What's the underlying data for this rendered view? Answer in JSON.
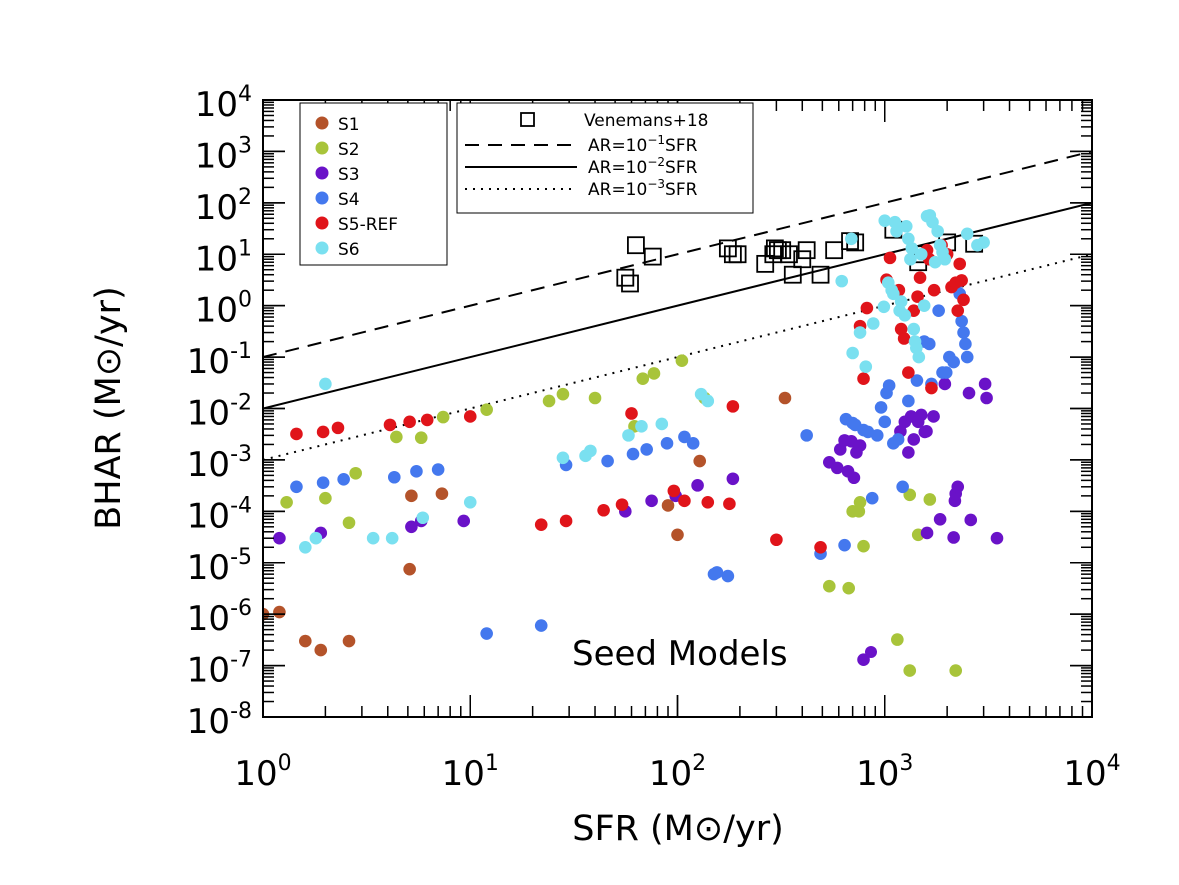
{
  "chart_data": {
    "type": "scatter",
    "title": "",
    "xlabel": "SFR (M⊙/yr)",
    "ylabel": "BHAR (M⊙/yr)",
    "xscale": "log",
    "yscale": "log",
    "xlim": [
      1,
      10000
    ],
    "ylim": [
      1e-08,
      10000
    ],
    "x_tick_labels": [
      {
        "base": "10",
        "exp": "0"
      },
      {
        "base": "10",
        "exp": "1"
      },
      {
        "base": "10",
        "exp": "2"
      },
      {
        "base": "10",
        "exp": "3"
      },
      {
        "base": "10",
        "exp": "4"
      }
    ],
    "y_tick_labels": [
      {
        "base": "10",
        "exp": "-8"
      },
      {
        "base": "10",
        "exp": "-7"
      },
      {
        "base": "10",
        "exp": "-6"
      },
      {
        "base": "10",
        "exp": "-5"
      },
      {
        "base": "10",
        "exp": "-4"
      },
      {
        "base": "10",
        "exp": "-3"
      },
      {
        "base": "10",
        "exp": "-2"
      },
      {
        "base": "10",
        "exp": "-1"
      },
      {
        "base": "10",
        "exp": "0"
      },
      {
        "base": "10",
        "exp": "1"
      },
      {
        "base": "10",
        "exp": "2"
      },
      {
        "base": "10",
        "exp": "3"
      },
      {
        "base": "10",
        "exp": "4"
      }
    ],
    "annotation": "Seed Models",
    "legend_series_position": "top-left",
    "legend_lines_position": "top-center",
    "lines": [
      {
        "name": "AR=10^-1 SFR",
        "label_pre": "AR=10",
        "label_exp": "−1",
        "label_post": "SFR",
        "style": "dashed",
        "ratio": 0.1
      },
      {
        "name": "AR=10^-2 SFR",
        "label_pre": "AR=10",
        "label_exp": "−2",
        "label_post": "SFR",
        "style": "solid",
        "ratio": 0.01
      },
      {
        "name": "AR=10^-3 SFR",
        "label_pre": "AR=10",
        "label_exp": "−3",
        "label_post": "SFR",
        "style": "dotted",
        "ratio": 0.001
      }
    ],
    "observations": {
      "name": "Venemans+18",
      "marker": "open-square",
      "color": "#000000",
      "points": [
        [
          56,
          3.5
        ],
        [
          59,
          2.7
        ],
        [
          63,
          15
        ],
        [
          76,
          9
        ],
        [
          175,
          13
        ],
        [
          185,
          10
        ],
        [
          195,
          10
        ],
        [
          265,
          6.5
        ],
        [
          290,
          10
        ],
        [
          295,
          13
        ],
        [
          305,
          12
        ],
        [
          320,
          12
        ],
        [
          345,
          10
        ],
        [
          360,
          4
        ],
        [
          400,
          8
        ],
        [
          420,
          12
        ],
        [
          490,
          4
        ],
        [
          570,
          12
        ],
        [
          680,
          18
        ],
        [
          720,
          17
        ],
        [
          1100,
          30
        ],
        [
          1450,
          7
        ],
        [
          1500,
          10
        ],
        [
          2000,
          17
        ],
        [
          2700,
          16
        ]
      ]
    },
    "series": [
      {
        "name": "S1",
        "color": "#b4532a",
        "points": [
          [
            1,
            1e-06
          ],
          [
            1.2,
            1.1e-06
          ],
          [
            1.6,
            3e-07
          ],
          [
            1.9,
            2e-07
          ],
          [
            2.6,
            3e-07
          ],
          [
            5.1,
            7.5e-06
          ],
          [
            5.2,
            0.0002
          ],
          [
            7.3,
            0.00022
          ],
          [
            90,
            0.00013
          ],
          [
            100,
            3.5e-05
          ],
          [
            128,
            0.00095
          ],
          [
            330,
            0.016
          ]
        ]
      },
      {
        "name": "S2",
        "color": "#a8c43a",
        "points": [
          [
            1.3,
            0.00015
          ],
          [
            2,
            0.00018
          ],
          [
            2.6,
            6e-05
          ],
          [
            2.8,
            0.00055
          ],
          [
            4.4,
            0.0028
          ],
          [
            5.8,
            0.0027
          ],
          [
            7.4,
            0.0068
          ],
          [
            12,
            0.0095
          ],
          [
            24,
            0.014
          ],
          [
            28,
            0.019
          ],
          [
            40,
            0.016
          ],
          [
            62,
            0.0045
          ],
          [
            68,
            0.038
          ],
          [
            77,
            0.048
          ],
          [
            105,
            0.085
          ],
          [
            135,
            0.016
          ],
          [
            540,
            3.5e-06
          ],
          [
            670,
            3.2e-06
          ],
          [
            700,
            0.0001
          ],
          [
            750,
            0.0001
          ],
          [
            760,
            0.00015
          ],
          [
            790,
            2.1e-05
          ],
          [
            1150,
            3.2e-07
          ],
          [
            1320,
            8e-08
          ],
          [
            1320,
            0.00021
          ],
          [
            1450,
            3.5e-05
          ],
          [
            1650,
            0.00017
          ],
          [
            2200,
            8e-08
          ]
        ]
      },
      {
        "name": "S3",
        "color": "#6a12c8",
        "points": [
          [
            1.2,
            3e-05
          ],
          [
            1.9,
            3.8e-05
          ],
          [
            5.2,
            5e-05
          ],
          [
            5.8,
            6.5e-05
          ],
          [
            9.3,
            6.5e-05
          ],
          [
            56,
            0.0001
          ],
          [
            75,
            0.00016
          ],
          [
            98,
            0.0002
          ],
          [
            125,
            0.00032
          ],
          [
            185,
            0.00043
          ],
          [
            540,
            0.0009
          ],
          [
            590,
            0.0007
          ],
          [
            610,
            0.0016
          ],
          [
            640,
            0.0024
          ],
          [
            665,
            0.0006
          ],
          [
            690,
            0.0023
          ],
          [
            710,
            0.00045
          ],
          [
            730,
            0.0014
          ],
          [
            760,
            0.0019
          ],
          [
            1190,
            0.0036
          ],
          [
            1250,
            0.0055
          ],
          [
            1300,
            0.0014
          ],
          [
            1340,
            0.007
          ],
          [
            1380,
            0.0025
          ],
          [
            1450,
            0.0055
          ],
          [
            1500,
            0.0075
          ],
          [
            1560,
            0.0035
          ],
          [
            1590,
            0.0036
          ],
          [
            1600,
            3.8e-05
          ],
          [
            1720,
            0.007
          ],
          [
            1850,
            7e-05
          ],
          [
            1950,
            0.03
          ],
          [
            2150,
            3.1e-05
          ],
          [
            2180,
            0.00016
          ],
          [
            2200,
            0.00022
          ],
          [
            2250,
            0.0003
          ],
          [
            2550,
            0.02
          ],
          [
            2600,
            6.8e-05
          ],
          [
            3050,
            0.03
          ],
          [
            3100,
            0.016
          ],
          [
            3480,
            3e-05
          ],
          [
            790,
            1.3e-07
          ]
        ]
      },
      {
        "name": "S4",
        "color": "#4478ee",
        "points": [
          [
            1.45,
            0.0003
          ],
          [
            1.95,
            0.00036
          ],
          [
            2.45,
            0.00042
          ],
          [
            4.3,
            0.00046
          ],
          [
            5.5,
            0.0006
          ],
          [
            7,
            0.00065
          ],
          [
            22,
            6e-07
          ],
          [
            12,
            4.2e-07
          ],
          [
            29,
            0.0008
          ],
          [
            46,
            0.00095
          ],
          [
            61,
            0.0013
          ],
          [
            71,
            0.0016
          ],
          [
            89,
            0.0021
          ],
          [
            108,
            0.0028
          ],
          [
            119,
            0.0021
          ],
          [
            150,
            6e-06
          ],
          [
            155,
            6.5e-06
          ],
          [
            175,
            5.5e-06
          ],
          [
            420,
            0.003
          ],
          [
            490,
            1.5e-05
          ],
          [
            640,
            2.2e-05
          ],
          [
            650,
            0.0062
          ],
          [
            700,
            0.0052
          ],
          [
            720,
            0.0048
          ],
          [
            790,
            0.0038
          ],
          [
            830,
            0.0035
          ],
          [
            870,
            0.00018
          ],
          [
            920,
            0.003
          ],
          [
            960,
            0.0105
          ],
          [
            1000,
            0.0055
          ],
          [
            1020,
            0.02
          ],
          [
            1050,
            0.028
          ],
          [
            1100,
            0.0021
          ],
          [
            1160,
            0.0025
          ],
          [
            1220,
            0.0003
          ],
          [
            1300,
            0.014
          ],
          [
            1430,
            0.035
          ],
          [
            1550,
            0.2
          ],
          [
            1640,
            0.18
          ],
          [
            1680,
            0.03
          ],
          [
            1820,
            0.8
          ],
          [
            1900,
            0.05
          ],
          [
            1980,
            0.05
          ],
          [
            2050,
            0.1
          ],
          [
            2150,
            0.08
          ],
          [
            2350,
            0.5
          ],
          [
            2400,
            0.3
          ],
          [
            2450,
            0.18
          ],
          [
            2500,
            0.1
          ],
          [
            2300,
            1.7
          ],
          [
            2250,
            2.8
          ]
        ]
      },
      {
        "name": "S5-REF",
        "color": "#e0141a",
        "points": [
          [
            1.45,
            0.0032
          ],
          [
            1.95,
            0.0035
          ],
          [
            2.3,
            0.0042
          ],
          [
            4.1,
            0.0048
          ],
          [
            5.1,
            0.0055
          ],
          [
            6.2,
            0.006
          ],
          [
            10,
            0.007
          ],
          [
            22,
            5.5e-05
          ],
          [
            29,
            6.5e-05
          ],
          [
            44,
            0.000105
          ],
          [
            54,
            0.000135
          ],
          [
            60,
            0.008
          ],
          [
            96,
            0.00025
          ],
          [
            108,
            0.00016
          ],
          [
            140,
            0.00015
          ],
          [
            178,
            0.00014
          ],
          [
            185,
            0.011
          ],
          [
            300,
            2.8e-05
          ],
          [
            490,
            2e-05
          ],
          [
            760,
            0.4
          ],
          [
            790,
            0.038
          ],
          [
            820,
            0.9
          ],
          [
            1020,
            3.2
          ],
          [
            1060,
            8.5
          ],
          [
            1170,
            2
          ],
          [
            1200,
            0.35
          ],
          [
            1240,
            0.23
          ],
          [
            1300,
            0.05
          ],
          [
            1380,
            0.8
          ],
          [
            1440,
            1.5
          ],
          [
            1480,
            3.5
          ],
          [
            1520,
            10
          ],
          [
            1570,
            10.5
          ],
          [
            1600,
            12
          ],
          [
            1640,
            8
          ],
          [
            1680,
            0.025
          ],
          [
            1730,
            2
          ],
          [
            1880,
            15
          ],
          [
            2000,
            10
          ],
          [
            2100,
            2.3
          ],
          [
            2200,
            2.8
          ],
          [
            2250,
            0.8
          ],
          [
            2300,
            6.5
          ],
          [
            2350,
            3.1
          ],
          [
            2400,
            1.3
          ]
        ]
      },
      {
        "name": "S6",
        "color": "#7ae0f0",
        "points": [
          [
            1.6,
            2e-05
          ],
          [
            1.8,
            3e-05
          ],
          [
            2,
            0.03
          ],
          [
            3.4,
            3e-05
          ],
          [
            4.2,
            3e-05
          ],
          [
            5.9,
            7.5e-05
          ],
          [
            10,
            0.00015
          ],
          [
            28,
            0.0011
          ],
          [
            36,
            0.0012
          ],
          [
            38,
            0.0015
          ],
          [
            58,
            0.003
          ],
          [
            67,
            0.0045
          ],
          [
            84,
            0.005
          ],
          [
            130,
            0.019
          ],
          [
            140,
            0.014
          ],
          [
            620,
            3
          ],
          [
            690,
            20
          ],
          [
            700,
            0.12
          ],
          [
            760,
            0.3
          ],
          [
            810,
            0.065
          ],
          [
            880,
            0.45
          ],
          [
            990,
            0.95
          ],
          [
            1000,
            45
          ],
          [
            1040,
            2.8
          ],
          [
            1080,
            2
          ],
          [
            1100,
            1.7
          ],
          [
            1120,
            42
          ],
          [
            1140,
            28
          ],
          [
            1180,
            0.8
          ],
          [
            1200,
            1.2
          ],
          [
            1250,
            0.65
          ],
          [
            1270,
            35
          ],
          [
            1300,
            20
          ],
          [
            1330,
            8
          ],
          [
            1350,
            13
          ],
          [
            1380,
            0.35
          ],
          [
            1400,
            0.2
          ],
          [
            1420,
            0.15
          ],
          [
            1460,
            0.1
          ],
          [
            1500,
            10
          ],
          [
            1550,
            1
          ],
          [
            1600,
            55
          ],
          [
            1650,
            57
          ],
          [
            1700,
            42
          ],
          [
            1750,
            7
          ],
          [
            1800,
            28
          ],
          [
            1850,
            15
          ],
          [
            1900,
            11
          ],
          [
            1950,
            8
          ],
          [
            2500,
            25
          ],
          [
            2800,
            15
          ],
          [
            3000,
            17
          ]
        ]
      }
    ]
  }
}
